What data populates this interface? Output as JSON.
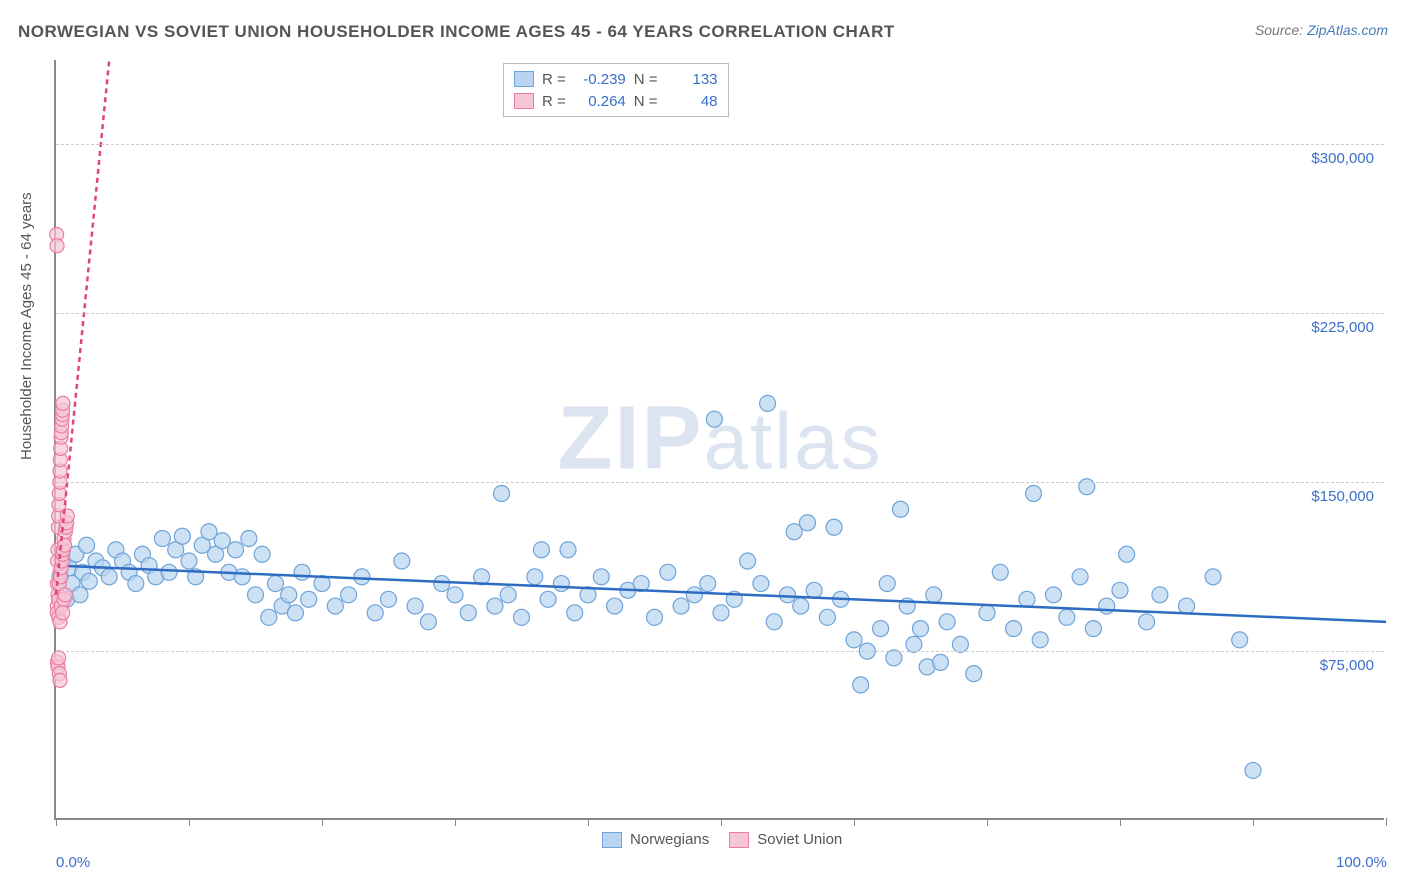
{
  "title": "NORWEGIAN VS SOVIET UNION HOUSEHOLDER INCOME AGES 45 - 64 YEARS CORRELATION CHART",
  "source_label": "Source: ",
  "source_link": "ZipAtlas.com",
  "y_axis_label": "Householder Income Ages 45 - 64 years",
  "watermark": "ZIPatlas",
  "chart": {
    "type": "scatter",
    "background_color": "#ffffff",
    "grid_color": "#cccccc",
    "axis_color": "#888888",
    "label_color": "#3b6fc9",
    "xlim": [
      0,
      100
    ],
    "ylim": [
      0,
      337500
    ],
    "x_ticks": [
      0,
      10,
      20,
      30,
      40,
      50,
      60,
      70,
      80,
      90,
      100
    ],
    "x_tick_labels": {
      "0": "0.0%",
      "100": "100.0%"
    },
    "y_ticks": [
      75000,
      150000,
      225000,
      300000
    ],
    "y_tick_labels": {
      "75000": "$75,000",
      "150000": "$150,000",
      "225000": "$225,000",
      "300000": "$300,000"
    },
    "series": [
      {
        "name": "Norwegians",
        "color_fill": "#b8d4f0",
        "color_stroke": "#6fa3d9",
        "trend_color": "#2d6cc0",
        "trend_dash": "none",
        "trend": {
          "x1": 0,
          "y1": 113000,
          "x2": 100,
          "y2": 88000
        },
        "marker_radius": 8,
        "R": "-0.239",
        "N": "133",
        "points": [
          [
            0.3,
            108000
          ],
          [
            0.5,
            115000
          ],
          [
            0.8,
            98000
          ],
          [
            1.0,
            112000
          ],
          [
            1.2,
            105000
          ],
          [
            1.5,
            118000
          ],
          [
            1.8,
            100000
          ],
          [
            2.0,
            110000
          ],
          [
            2.3,
            122000
          ],
          [
            2.5,
            106000
          ],
          [
            3.0,
            115000
          ],
          [
            3.5,
            112000
          ],
          [
            4.0,
            108000
          ],
          [
            4.5,
            120000
          ],
          [
            5.0,
            115000
          ],
          [
            5.5,
            110000
          ],
          [
            6.0,
            105000
          ],
          [
            6.5,
            118000
          ],
          [
            7.0,
            113000
          ],
          [
            7.5,
            108000
          ],
          [
            8.0,
            125000
          ],
          [
            8.5,
            110000
          ],
          [
            9.0,
            120000
          ],
          [
            9.5,
            126000
          ],
          [
            10.0,
            115000
          ],
          [
            10.5,
            108000
          ],
          [
            11.0,
            122000
          ],
          [
            11.5,
            128000
          ],
          [
            12.0,
            118000
          ],
          [
            12.5,
            124000
          ],
          [
            13.0,
            110000
          ],
          [
            13.5,
            120000
          ],
          [
            14.0,
            108000
          ],
          [
            14.5,
            125000
          ],
          [
            15.0,
            100000
          ],
          [
            15.5,
            118000
          ],
          [
            16.0,
            90000
          ],
          [
            16.5,
            105000
          ],
          [
            17.0,
            95000
          ],
          [
            17.5,
            100000
          ],
          [
            18.0,
            92000
          ],
          [
            18.5,
            110000
          ],
          [
            19.0,
            98000
          ],
          [
            20.0,
            105000
          ],
          [
            21.0,
            95000
          ],
          [
            22.0,
            100000
          ],
          [
            23.0,
            108000
          ],
          [
            24.0,
            92000
          ],
          [
            25.0,
            98000
          ],
          [
            26.0,
            115000
          ],
          [
            27.0,
            95000
          ],
          [
            28.0,
            88000
          ],
          [
            29.0,
            105000
          ],
          [
            30.0,
            100000
          ],
          [
            31.0,
            92000
          ],
          [
            32.0,
            108000
          ],
          [
            33.0,
            95000
          ],
          [
            33.5,
            145000
          ],
          [
            34.0,
            100000
          ],
          [
            35.0,
            90000
          ],
          [
            36.0,
            108000
          ],
          [
            36.5,
            120000
          ],
          [
            37.0,
            98000
          ],
          [
            38.0,
            105000
          ],
          [
            38.5,
            120000
          ],
          [
            39.0,
            92000
          ],
          [
            40.0,
            100000
          ],
          [
            41.0,
            108000
          ],
          [
            42.0,
            95000
          ],
          [
            43.0,
            102000
          ],
          [
            44.0,
            105000
          ],
          [
            45.0,
            90000
          ],
          [
            46.0,
            110000
          ],
          [
            47.0,
            95000
          ],
          [
            48.0,
            100000
          ],
          [
            49.0,
            105000
          ],
          [
            49.5,
            178000
          ],
          [
            50.0,
            92000
          ],
          [
            51.0,
            98000
          ],
          [
            52.0,
            115000
          ],
          [
            53.0,
            105000
          ],
          [
            53.5,
            185000
          ],
          [
            54.0,
            88000
          ],
          [
            55.0,
            100000
          ],
          [
            55.5,
            128000
          ],
          [
            56.0,
            95000
          ],
          [
            56.5,
            132000
          ],
          [
            57.0,
            102000
          ],
          [
            58.0,
            90000
          ],
          [
            58.5,
            130000
          ],
          [
            59.0,
            98000
          ],
          [
            60.0,
            80000
          ],
          [
            60.5,
            60000
          ],
          [
            61.0,
            75000
          ],
          [
            62.0,
            85000
          ],
          [
            62.5,
            105000
          ],
          [
            63.0,
            72000
          ],
          [
            63.5,
            138000
          ],
          [
            64.0,
            95000
          ],
          [
            64.5,
            78000
          ],
          [
            65.0,
            85000
          ],
          [
            65.5,
            68000
          ],
          [
            66.0,
            100000
          ],
          [
            66.5,
            70000
          ],
          [
            67.0,
            88000
          ],
          [
            68.0,
            78000
          ],
          [
            69.0,
            65000
          ],
          [
            70.0,
            92000
          ],
          [
            71.0,
            110000
          ],
          [
            72.0,
            85000
          ],
          [
            73.0,
            98000
          ],
          [
            73.5,
            145000
          ],
          [
            74.0,
            80000
          ],
          [
            75.0,
            100000
          ],
          [
            76.0,
            90000
          ],
          [
            77.0,
            108000
          ],
          [
            77.5,
            148000
          ],
          [
            78.0,
            85000
          ],
          [
            79.0,
            95000
          ],
          [
            80.0,
            102000
          ],
          [
            80.5,
            118000
          ],
          [
            82.0,
            88000
          ],
          [
            83.0,
            100000
          ],
          [
            85.0,
            95000
          ],
          [
            87.0,
            108000
          ],
          [
            89.0,
            80000
          ],
          [
            90.0,
            22000
          ]
        ]
      },
      {
        "name": "Soviet Union",
        "color_fill": "#f5c6d6",
        "color_stroke": "#ea7ba2",
        "trend_color": "#e0457a",
        "trend_dash": "5,4",
        "trend": {
          "x1": 0,
          "y1": 100000,
          "x2": 4,
          "y2": 337500
        },
        "marker_radius": 7,
        "R": "0.264",
        "N": "48",
        "points": [
          [
            0.05,
            260000
          ],
          [
            0.08,
            255000
          ],
          [
            0.1,
            105000
          ],
          [
            0.12,
            115000
          ],
          [
            0.15,
            120000
          ],
          [
            0.18,
            130000
          ],
          [
            0.2,
            135000
          ],
          [
            0.22,
            140000
          ],
          [
            0.25,
            145000
          ],
          [
            0.28,
            150000
          ],
          [
            0.3,
            155000
          ],
          [
            0.32,
            160000
          ],
          [
            0.35,
            165000
          ],
          [
            0.38,
            170000
          ],
          [
            0.4,
            172000
          ],
          [
            0.42,
            175000
          ],
          [
            0.45,
            178000
          ],
          [
            0.48,
            180000
          ],
          [
            0.5,
            182000
          ],
          [
            0.52,
            185000
          ],
          [
            0.1,
            95000
          ],
          [
            0.15,
            100000
          ],
          [
            0.2,
            98000
          ],
          [
            0.25,
            105000
          ],
          [
            0.3,
            110000
          ],
          [
            0.35,
            108000
          ],
          [
            0.4,
            112000
          ],
          [
            0.45,
            115000
          ],
          [
            0.5,
            118000
          ],
          [
            0.55,
            120000
          ],
          [
            0.6,
            125000
          ],
          [
            0.65,
            122000
          ],
          [
            0.7,
            128000
          ],
          [
            0.75,
            130000
          ],
          [
            0.8,
            132000
          ],
          [
            0.85,
            135000
          ],
          [
            0.1,
            70000
          ],
          [
            0.15,
            68000
          ],
          [
            0.2,
            72000
          ],
          [
            0.25,
            65000
          ],
          [
            0.3,
            62000
          ],
          [
            0.1,
            92000
          ],
          [
            0.2,
            90000
          ],
          [
            0.3,
            88000
          ],
          [
            0.4,
            95000
          ],
          [
            0.5,
            92000
          ],
          [
            0.6,
            98000
          ],
          [
            0.7,
            100000
          ]
        ]
      }
    ]
  },
  "legend_top": {
    "r_label": "R =",
    "n_label": "N ="
  },
  "legend_bottom": [
    {
      "label": "Norwegians"
    },
    {
      "label": "Soviet Union"
    }
  ]
}
